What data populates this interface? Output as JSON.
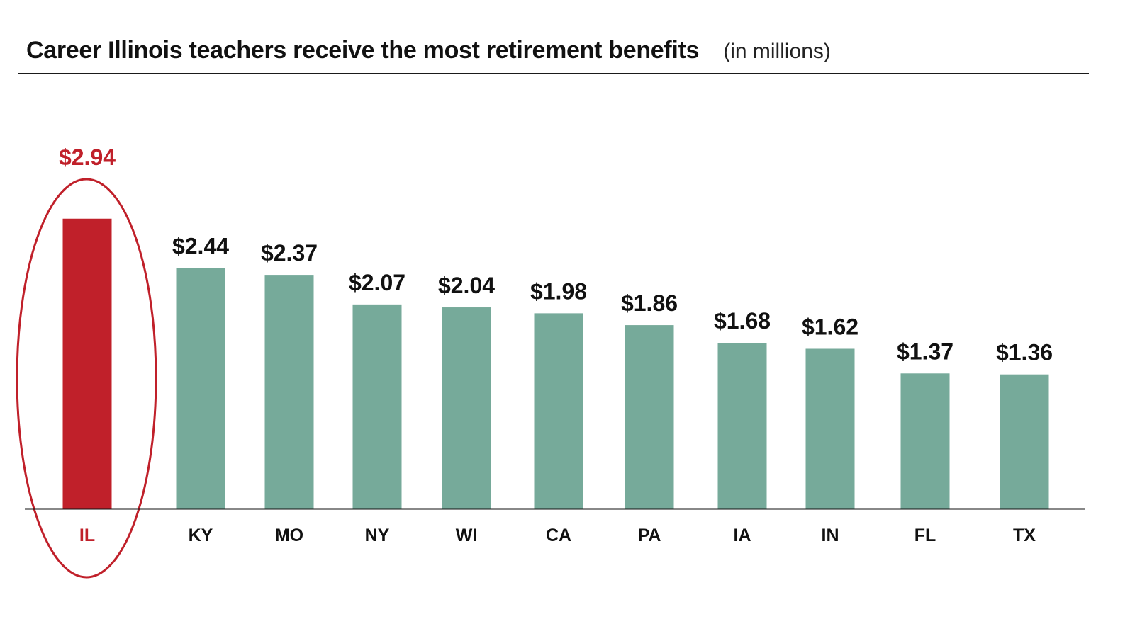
{
  "header": {
    "title": "Career Illinois teachers receive the most retirement benefits",
    "subtitle": "(in millions)"
  },
  "colors": {
    "highlight": "#c0202a",
    "bar": "#76aa9a",
    "text": "#111111",
    "axis": "#111111"
  },
  "chart_data": {
    "type": "bar",
    "title": "Career Illinois teachers receive the most retirement benefits",
    "subtitle": "(in millions)",
    "xlabel": "",
    "ylabel": "",
    "ylim": [
      0,
      3.5
    ],
    "grid": false,
    "legend": "none",
    "categories": [
      "IL",
      "KY",
      "MO",
      "NY",
      "WI",
      "CA",
      "PA",
      "IA",
      "IN",
      "FL",
      "TX"
    ],
    "values": [
      2.94,
      2.44,
      2.37,
      2.07,
      2.04,
      1.98,
      1.86,
      1.68,
      1.62,
      1.37,
      1.36
    ],
    "value_labels": [
      "$2.94",
      "$2.44",
      "$2.37",
      "$2.07",
      "$2.04",
      "$1.98",
      "$1.86",
      "$1.68",
      "$1.62",
      "$1.37",
      "$1.36"
    ],
    "highlight_category": "IL",
    "highlight_annotation": "ellipse"
  }
}
